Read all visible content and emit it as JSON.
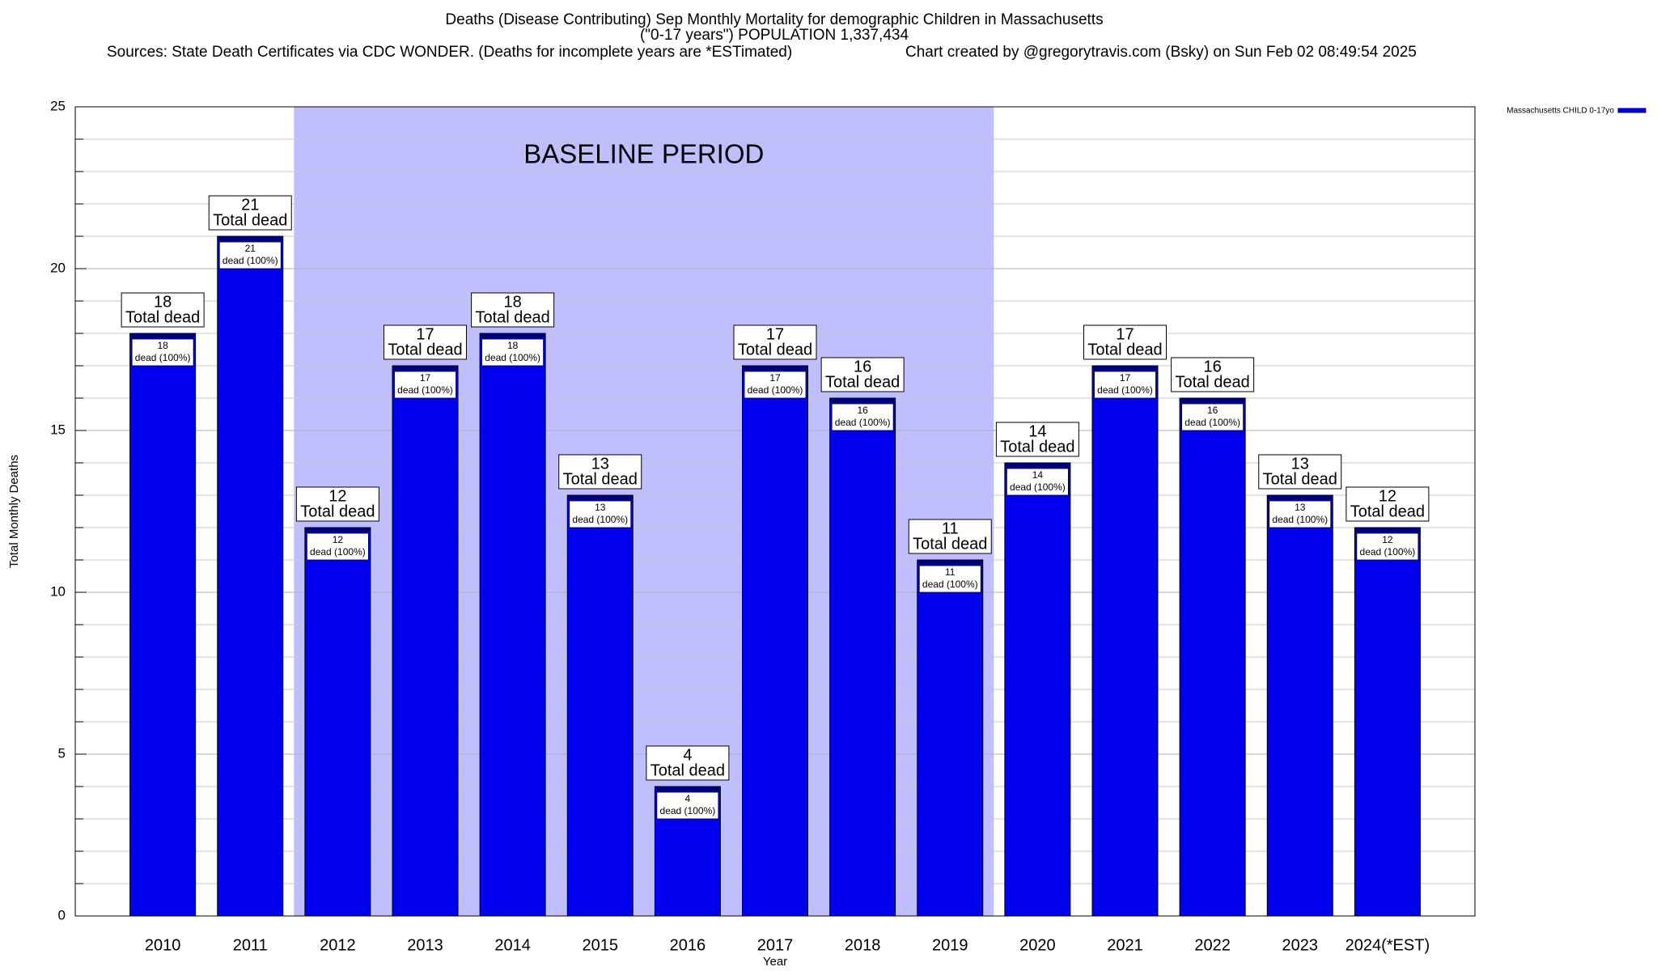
{
  "chart_data": {
    "type": "bar",
    "title": "Deaths (Disease Contributing) Sep Monthly Mortality for demographic Children in Massachusetts",
    "subtitle": "(\"0-17 years\") POPULATION 1,337,434",
    "sources": "Sources: State Death Certificates via CDC WONDER. (Deaths for incomplete years are *ESTimated)",
    "credit": "Chart created by @gregorytravis.com (Bsky) on Sun Feb 02 08:49:54 2025",
    "x_label": "Year",
    "y_label": "Total Monthly Deaths",
    "categories": [
      "2010",
      "2011",
      "2012",
      "2013",
      "2014",
      "2015",
      "2016",
      "2017",
      "2018",
      "2019",
      "2020",
      "2021",
      "2022",
      "2023",
      "2024(*EST)"
    ],
    "series": [
      {
        "name": "Massachusetts CHILD 0-17yo",
        "color": "#0000ee",
        "values": [
          18,
          21,
          12,
          17,
          18,
          13,
          4,
          17,
          16,
          11,
          14,
          17,
          16,
          13,
          12
        ]
      }
    ],
    "total_label": "Total dead",
    "segment_label": "dead (100%)",
    "baseline": {
      "label": "BASELINE PERIOD",
      "from": "2012",
      "to": "2019",
      "color": "#bfbfff"
    },
    "ylim": [
      0,
      25
    ],
    "yticks": [
      0,
      5,
      10,
      15,
      20,
      25
    ],
    "minor_yticks": [
      1,
      2,
      3,
      4,
      6,
      7,
      8,
      9,
      11,
      12,
      13,
      14,
      16,
      17,
      18,
      19,
      21,
      22,
      23,
      24
    ],
    "grid": true,
    "legend": "top-right"
  }
}
